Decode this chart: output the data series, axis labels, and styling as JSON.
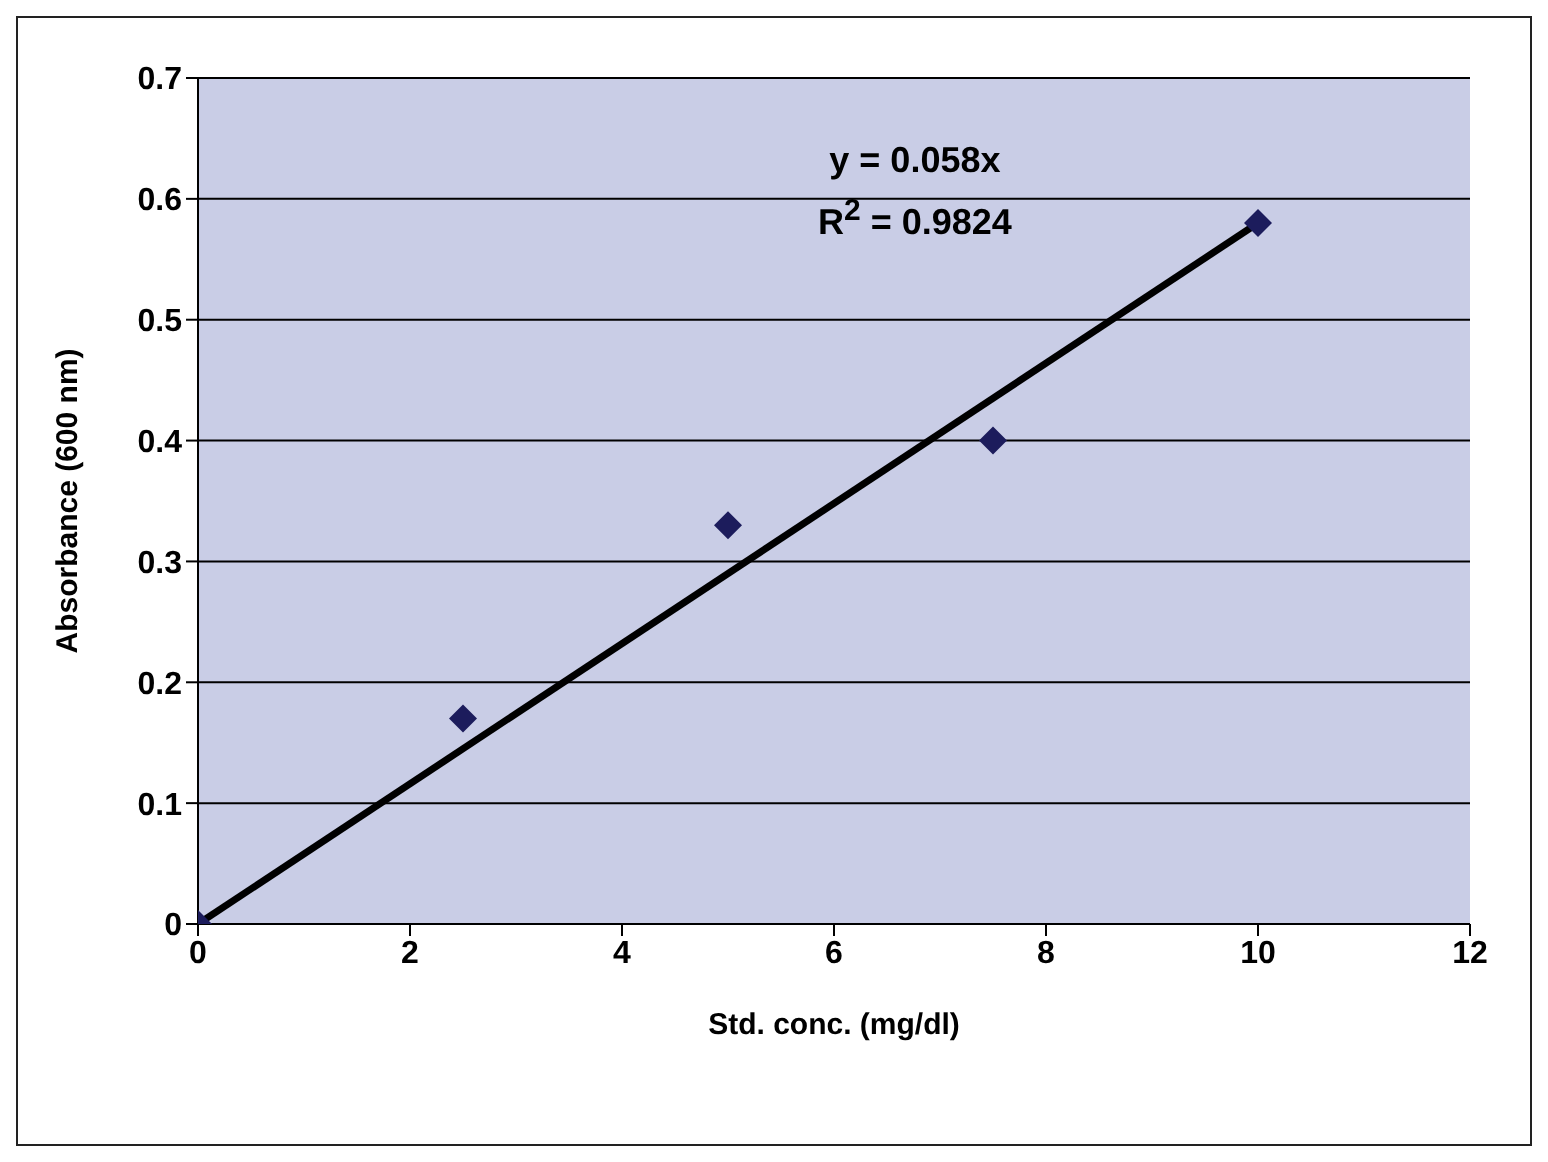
{
  "chart_data": {
    "type": "scatter",
    "xlabel": "Std. conc. (mg/dl)",
    "ylabel": "Absorbance (600 nm)",
    "annotations": [
      "y = 0.058x",
      "R$^{2}$ = 0.9824"
    ],
    "x": [
      0,
      2.5,
      5,
      7.5,
      10
    ],
    "series": [
      {
        "color": "#1c1c5c",
        "values": [
          0,
          0.17,
          0.33,
          0.4,
          0.58
        ],
        "marker": "diamond"
      },
      {
        "type": "line",
        "color": "#000000",
        "x": [
          0,
          10
        ],
        "values": [
          0,
          0.58
        ],
        "marker": "none",
        "line_style": "solid"
      }
    ],
    "xlim": [
      0,
      12
    ],
    "xticks": [
      0,
      2,
      4,
      6,
      8,
      10,
      12
    ],
    "ylim": [
      0,
      0.7
    ],
    "yticks": [
      0,
      0.1,
      0.2,
      0.3,
      0.4,
      0.5,
      0.6,
      0.7
    ],
    "grid": "y"
  }
}
